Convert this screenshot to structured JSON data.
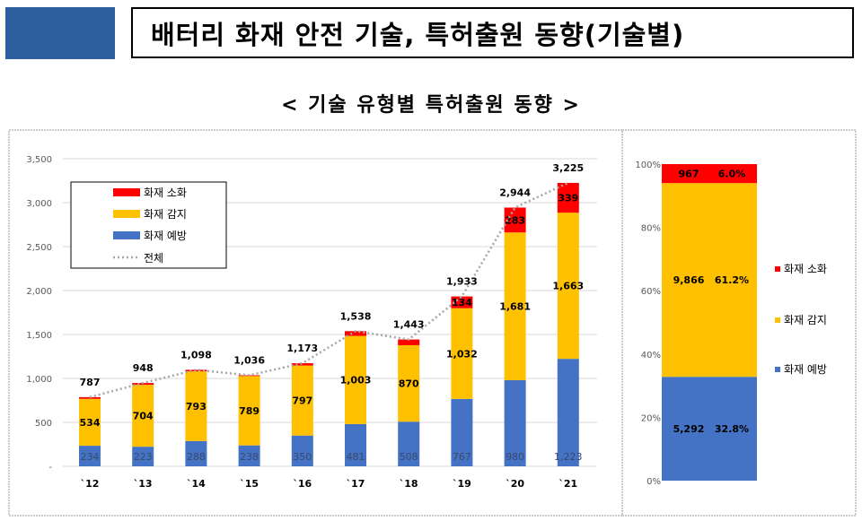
{
  "header": {
    "title": "배터리 화재 안전 기술, 특허출원 동향(기술별)",
    "subtitle": "< 기술 유형별 특허출원 동향 >"
  },
  "colors": {
    "extinguish": "#ff0000",
    "detection": "#ffc000",
    "prevention": "#4472c4",
    "total": "#a6a6a6"
  },
  "chart_data": [
    {
      "type": "bar",
      "stacked": true,
      "categories": [
        "`12",
        "`13",
        "`14",
        "`15",
        "`16",
        "`17",
        "`18",
        "`19",
        "`20",
        "`21"
      ],
      "ylim": [
        0,
        3500
      ],
      "yticks": [
        "-",
        "500",
        "1,000",
        "1,500",
        "2,000",
        "2,500",
        "3,000",
        "3,500"
      ],
      "grid": true,
      "legend_placement": "top-left",
      "series": [
        {
          "name": "화재 예방",
          "values": [
            234,
            223,
            288,
            238,
            350,
            481,
            508,
            767,
            980,
            1223
          ],
          "labels": [
            "234",
            "223",
            "288",
            "238",
            "350",
            "481",
            "508",
            "767",
            "980",
            "1,223"
          ]
        },
        {
          "name": "화재 감지",
          "values": [
            534,
            704,
            793,
            789,
            797,
            1003,
            870,
            1032,
            1681,
            1663
          ],
          "labels": [
            "534",
            "704",
            "793",
            "789",
            "797",
            "1,003",
            "870",
            "1,032",
            "1,681",
            "1,663"
          ]
        },
        {
          "name": "화재 소화",
          "values": [
            19,
            21,
            17,
            9,
            26,
            54,
            65,
            134,
            283,
            339
          ],
          "labels": [
            "",
            "",
            "",
            "",
            "",
            "",
            "",
            "134",
            "283",
            "339"
          ]
        },
        {
          "name": "전체",
          "type": "line",
          "values": [
            787,
            948,
            1098,
            1036,
            1173,
            1538,
            1443,
            1933,
            2944,
            3225
          ],
          "labels": [
            "787",
            "948",
            "1,098",
            "1,036",
            "1,173",
            "1,538",
            "1,443",
            "1,933",
            "2,944",
            "3,225"
          ]
        }
      ]
    },
    {
      "type": "bar",
      "stacked": true,
      "percent": true,
      "yticks": [
        "0%",
        "20%",
        "40%",
        "60%",
        "80%",
        "100%"
      ],
      "legend_placement": "right",
      "series": [
        {
          "name": "화재 예방",
          "value": 5292,
          "label": "5,292",
          "pct": "32.8%",
          "share": 32.8
        },
        {
          "name": "화재 감지",
          "value": 9866,
          "label": "9,866",
          "pct": "61.2%",
          "share": 61.2
        },
        {
          "name": "화재 소화",
          "value": 967,
          "label": "967",
          "pct": "6.0%",
          "share": 6.0
        }
      ]
    }
  ]
}
